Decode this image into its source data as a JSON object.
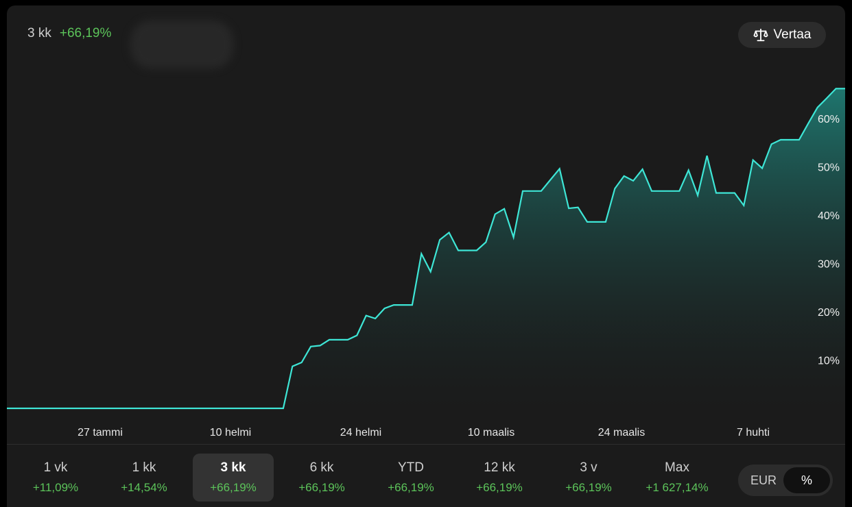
{
  "header": {
    "period": "3 kk",
    "change": "+66,19%"
  },
  "compare_button": {
    "label": "Vertaa",
    "icon": "scale-icon"
  },
  "chart_data": {
    "type": "area",
    "xlabel": "",
    "ylabel": "",
    "ylim": [
      0,
      70
    ],
    "y_ticks": [
      "10%",
      "20%",
      "30%",
      "40%",
      "50%",
      "60%"
    ],
    "y_tick_values": [
      10,
      20,
      30,
      40,
      50,
      60
    ],
    "x_ticks": [
      "27 tammi",
      "10 helmi",
      "24 helmi",
      "10 maalis",
      "24 maalis",
      "7 huhti"
    ],
    "x": [
      0,
      1,
      2,
      3,
      4,
      5,
      6,
      7,
      8,
      9,
      10,
      11,
      12,
      13,
      14,
      15,
      16,
      17,
      18,
      19,
      20,
      21,
      22,
      23,
      24,
      25,
      26,
      27,
      28,
      29,
      30,
      31,
      32,
      33,
      34,
      35,
      36,
      37,
      38,
      39,
      40,
      41,
      42,
      43,
      44,
      45,
      46,
      47,
      48,
      49,
      50,
      51,
      52,
      53,
      54,
      55,
      56,
      57,
      58,
      59,
      60,
      61,
      62,
      63,
      64,
      65,
      66,
      67,
      68,
      69,
      70,
      71,
      72,
      73,
      74,
      75,
      76,
      77,
      78,
      79,
      80,
      81,
      82,
      83,
      84,
      85,
      86,
      87,
      88,
      89,
      90,
      91
    ],
    "values": [
      0,
      0,
      0,
      0,
      0,
      0,
      0,
      0,
      0,
      0,
      0,
      0,
      0,
      0,
      0,
      0,
      0,
      0,
      0,
      0,
      0,
      0,
      0,
      0,
      0,
      0,
      0,
      0,
      0,
      0,
      0,
      8.7,
      9.5,
      12.8,
      13,
      14.2,
      14.2,
      14.2,
      15.1,
      19.2,
      18.6,
      20.7,
      21.4,
      21.4,
      21.4,
      32,
      28.3,
      34.9,
      36.4,
      32.7,
      32.7,
      32.7,
      34.4,
      40.2,
      41.3,
      35.4,
      45,
      45,
      45,
      47.3,
      49.6,
      41.4,
      41.6,
      38.6,
      38.6,
      38.6,
      45.5,
      48.1,
      47.1,
      49.5,
      45,
      45,
      45,
      45,
      49.3,
      44.1,
      52.3,
      44.6,
      44.6,
      44.6,
      42,
      51.4,
      49.7,
      54.7,
      55.6,
      55.6,
      55.6,
      59,
      62.3,
      64.2,
      66.2,
      66.2
    ],
    "grid": false,
    "legend": "none",
    "line_color": "#3ee6d6",
    "fill_color": "#1f7a72"
  },
  "periods": [
    {
      "label": "1 vk",
      "change": "+11,09%",
      "active": false
    },
    {
      "label": "1 kk",
      "change": "+14,54%",
      "active": false
    },
    {
      "label": "3 kk",
      "change": "+66,19%",
      "active": true
    },
    {
      "label": "6 kk",
      "change": "+66,19%",
      "active": false
    },
    {
      "label": "YTD",
      "change": "+66,19%",
      "active": false
    },
    {
      "label": "12 kk",
      "change": "+66,19%",
      "active": false
    },
    {
      "label": "3 v",
      "change": "+66,19%",
      "active": false
    },
    {
      "label": "Max",
      "change": "+1 627,14%",
      "active": false
    }
  ],
  "unit_toggle": {
    "eur": "EUR",
    "pct": "%",
    "selected": "%"
  },
  "colors": {
    "positive": "#5cc45a",
    "accent": "#3ee6d6",
    "background": "#1b1b1b"
  }
}
